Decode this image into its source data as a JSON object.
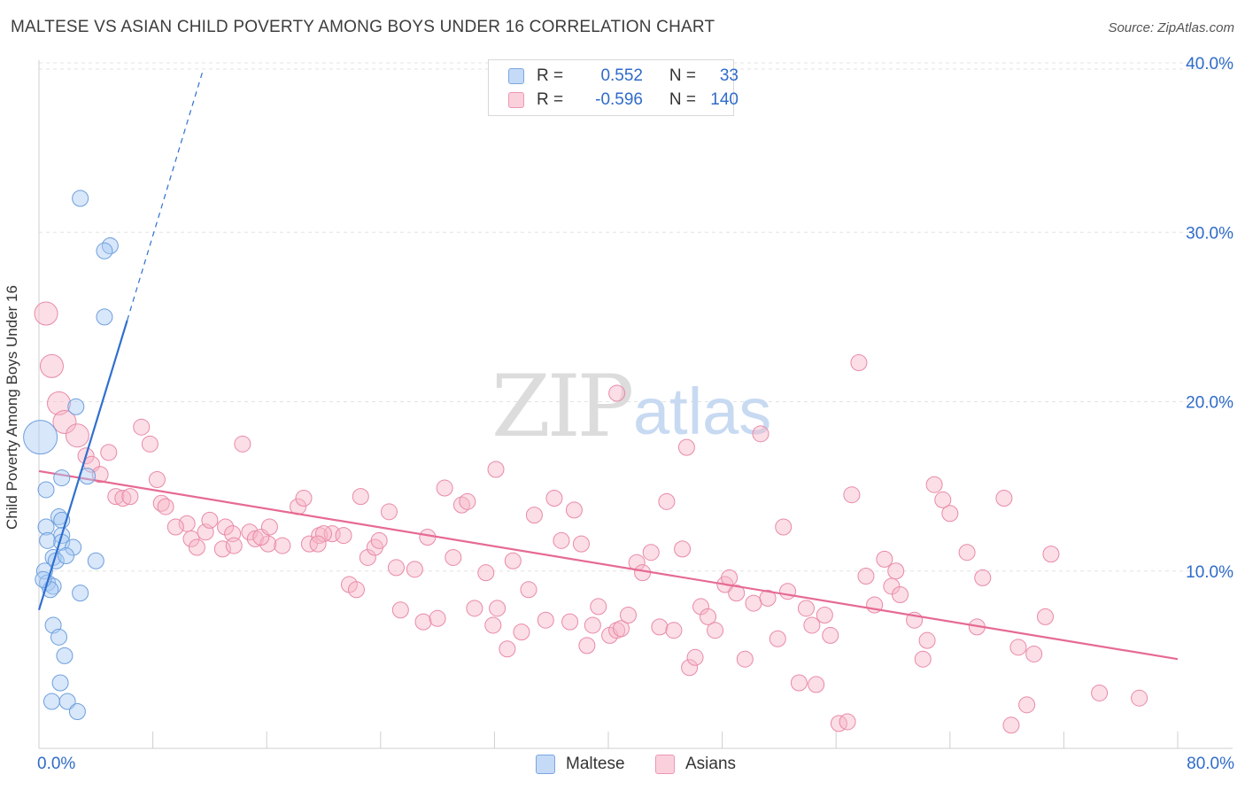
{
  "header": {
    "title": "MALTESE VS ASIAN CHILD POVERTY AMONG BOYS UNDER 16 CORRELATION CHART",
    "source": "Source: ZipAtlas.com"
  },
  "watermark": {
    "zip": "ZIP",
    "atlas": "atlas"
  },
  "legend": {
    "rows": [
      {
        "r_label": "R =",
        "r_value": "0.552",
        "n_label": "N =",
        "n_value": "33",
        "color": "#a9c9f5"
      },
      {
        "r_label": "R =",
        "r_value": "-0.596",
        "n_label": "N =",
        "n_value": "140",
        "color": "#f7b5c8"
      }
    ]
  },
  "bottom_legend": [
    {
      "label": "Maltese",
      "color": "#a9c9f5"
    },
    {
      "label": "Asians",
      "color": "#f7b5c8"
    }
  ],
  "colors": {
    "maltese_fill": "#a9c9f5",
    "maltese_stroke": "#6e9fdc",
    "maltese_line": "#2f6fcf",
    "asian_fill": "#f7b5c8",
    "asian_stroke": "#e98aa7",
    "asian_line": "#e66a92",
    "tick_label": "#2f6bc9",
    "grid": "#e3e3e3"
  },
  "chart_data": {
    "type": "scatter",
    "title": "MALTESE VS ASIAN CHILD POVERTY AMONG BOYS UNDER 16 CORRELATION CHART",
    "xlabel": "",
    "ylabel": "Child Poverty Among Boys Under 16",
    "xlim": [
      0,
      80
    ],
    "ylim": [
      0,
      40
    ],
    "x_tick_labels": [
      "0.0%",
      "80.0%"
    ],
    "y_tick_labels": [
      "10.0%",
      "20.0%",
      "30.0%",
      "40.0%"
    ],
    "y_ticks": [
      10,
      20,
      30,
      40
    ],
    "grid": true,
    "series": [
      {
        "name": "Maltese",
        "r": 0.552,
        "n": 33,
        "trend": {
          "x": [
            0,
            6.2
          ],
          "y": [
            7.7,
            24.8
          ],
          "dashed_to": [
            11.5,
            39.5
          ]
        },
        "points": [
          [
            0.1,
            17.9,
            4
          ],
          [
            2.9,
            32.0,
            1
          ],
          [
            5.0,
            29.2,
            1
          ],
          [
            4.6,
            28.9,
            1
          ],
          [
            4.6,
            25.0,
            1
          ],
          [
            2.6,
            19.7,
            1
          ],
          [
            3.4,
            15.6,
            1
          ],
          [
            1.6,
            15.5,
            1
          ],
          [
            0.5,
            14.8,
            1
          ],
          [
            0.5,
            12.6,
            1
          ],
          [
            1.4,
            13.2,
            1
          ],
          [
            1.6,
            13.0,
            1
          ],
          [
            1.6,
            12.1,
            1
          ],
          [
            0.6,
            11.8,
            1
          ],
          [
            1.6,
            11.7,
            1
          ],
          [
            2.4,
            11.4,
            1
          ],
          [
            1.0,
            10.8,
            1
          ],
          [
            1.2,
            10.6,
            1
          ],
          [
            4.0,
            10.6,
            1
          ],
          [
            0.4,
            10.0,
            1
          ],
          [
            0.6,
            9.3,
            1
          ],
          [
            1.0,
            9.1,
            1
          ],
          [
            0.8,
            8.9,
            1
          ],
          [
            2.9,
            8.7,
            1
          ],
          [
            1.0,
            6.8,
            1
          ],
          [
            1.4,
            6.1,
            1
          ],
          [
            1.8,
            5.0,
            1
          ],
          [
            1.5,
            3.4,
            1
          ],
          [
            0.9,
            2.3,
            1
          ],
          [
            2.0,
            2.3,
            1
          ],
          [
            2.7,
            1.7,
            1
          ],
          [
            0.3,
            9.5,
            1
          ],
          [
            1.9,
            10.9,
            1
          ]
        ]
      },
      {
        "name": "Asians",
        "r": -0.596,
        "n": 140,
        "trend": {
          "x": [
            0,
            80
          ],
          "y": [
            15.9,
            4.8
          ]
        },
        "points": [
          [
            0.5,
            25.2,
            2
          ],
          [
            0.9,
            22.1,
            2
          ],
          [
            1.4,
            19.9,
            2
          ],
          [
            1.8,
            18.8,
            2
          ],
          [
            2.7,
            18.0,
            2
          ],
          [
            3.3,
            16.8,
            1
          ],
          [
            3.7,
            16.3,
            1
          ],
          [
            4.3,
            15.7,
            1
          ],
          [
            4.9,
            17.0,
            1
          ],
          [
            7.8,
            17.5,
            1
          ],
          [
            7.2,
            18.5,
            1
          ],
          [
            14.3,
            17.5,
            1
          ],
          [
            8.3,
            15.4,
            1
          ],
          [
            5.4,
            14.4,
            1
          ],
          [
            5.9,
            14.3,
            1
          ],
          [
            6.4,
            14.4,
            1
          ],
          [
            8.6,
            14.0,
            1
          ],
          [
            8.9,
            13.8,
            1
          ],
          [
            10.4,
            12.8,
            1
          ],
          [
            9.6,
            12.6,
            1
          ],
          [
            10.7,
            11.9,
            1
          ],
          [
            11.7,
            12.3,
            1
          ],
          [
            11.1,
            11.4,
            1
          ],
          [
            12.0,
            13.0,
            1
          ],
          [
            12.9,
            11.3,
            1
          ],
          [
            13.1,
            12.6,
            1
          ],
          [
            13.6,
            12.2,
            1
          ],
          [
            14.8,
            12.3,
            1
          ],
          [
            15.2,
            11.9,
            1
          ],
          [
            16.1,
            11.6,
            1
          ],
          [
            15.6,
            12.0,
            1
          ],
          [
            16.2,
            12.6,
            1
          ],
          [
            17.1,
            11.5,
            1
          ],
          [
            18.2,
            13.8,
            1
          ],
          [
            18.6,
            14.3,
            1
          ],
          [
            19.0,
            11.6,
            1
          ],
          [
            19.7,
            12.1,
            1
          ],
          [
            20.6,
            12.2,
            1
          ],
          [
            20.0,
            12.2,
            1
          ],
          [
            21.4,
            12.1,
            1
          ],
          [
            21.8,
            9.2,
            1
          ],
          [
            22.3,
            8.9,
            1
          ],
          [
            22.6,
            14.4,
            1
          ],
          [
            23.1,
            10.8,
            1
          ],
          [
            23.6,
            11.4,
            1
          ],
          [
            23.9,
            11.8,
            1
          ],
          [
            24.6,
            13.5,
            1
          ],
          [
            25.1,
            10.2,
            1
          ],
          [
            25.4,
            7.7,
            1
          ],
          [
            26.4,
            10.1,
            1
          ],
          [
            27.0,
            7.0,
            1
          ],
          [
            27.3,
            12.0,
            1
          ],
          [
            28.0,
            7.2,
            1
          ],
          [
            28.5,
            14.9,
            1
          ],
          [
            29.1,
            10.8,
            1
          ],
          [
            29.7,
            13.9,
            1
          ],
          [
            30.1,
            14.1,
            1
          ],
          [
            30.6,
            7.8,
            1
          ],
          [
            31.4,
            9.9,
            1
          ],
          [
            32.1,
            16.0,
            1
          ],
          [
            31.9,
            6.8,
            1
          ],
          [
            32.2,
            7.8,
            1
          ],
          [
            32.9,
            5.4,
            1
          ],
          [
            33.3,
            10.6,
            1
          ],
          [
            33.9,
            6.4,
            1
          ],
          [
            34.4,
            8.9,
            1
          ],
          [
            34.8,
            13.3,
            1
          ],
          [
            35.6,
            7.1,
            1
          ],
          [
            36.2,
            14.3,
            1
          ],
          [
            36.7,
            11.8,
            1
          ],
          [
            37.3,
            7.0,
            1
          ],
          [
            37.6,
            13.6,
            1
          ],
          [
            38.1,
            11.6,
            1
          ],
          [
            38.5,
            5.6,
            1
          ],
          [
            38.9,
            6.8,
            1
          ],
          [
            39.3,
            7.9,
            1
          ],
          [
            40.1,
            6.2,
            1
          ],
          [
            40.6,
            6.5,
            1
          ],
          [
            40.9,
            6.6,
            1
          ],
          [
            41.4,
            7.4,
            1
          ],
          [
            42.0,
            10.5,
            1
          ],
          [
            42.4,
            9.9,
            1
          ],
          [
            40.6,
            20.5,
            1
          ],
          [
            43.0,
            11.1,
            1
          ],
          [
            43.6,
            6.7,
            1
          ],
          [
            44.1,
            14.1,
            1
          ],
          [
            44.6,
            6.5,
            1
          ],
          [
            45.2,
            11.3,
            1
          ],
          [
            45.5,
            17.3,
            1
          ],
          [
            45.7,
            4.3,
            1
          ],
          [
            46.1,
            4.9,
            1
          ],
          [
            46.5,
            7.9,
            1
          ],
          [
            47.0,
            7.3,
            1
          ],
          [
            47.5,
            6.5,
            1
          ],
          [
            48.2,
            9.2,
            1
          ],
          [
            48.5,
            9.6,
            1
          ],
          [
            49.0,
            8.7,
            1
          ],
          [
            49.6,
            4.8,
            1
          ],
          [
            50.2,
            8.1,
            1
          ],
          [
            50.7,
            18.1,
            1
          ],
          [
            51.2,
            8.4,
            1
          ],
          [
            51.9,
            6.0,
            1
          ],
          [
            52.3,
            12.6,
            1
          ],
          [
            52.6,
            8.8,
            1
          ],
          [
            53.4,
            3.4,
            1
          ],
          [
            53.9,
            7.8,
            1
          ],
          [
            54.3,
            6.8,
            1
          ],
          [
            54.6,
            3.3,
            1
          ],
          [
            55.2,
            7.4,
            1
          ],
          [
            55.6,
            6.2,
            1
          ],
          [
            56.2,
            1.0,
            1
          ],
          [
            56.8,
            1.1,
            1
          ],
          [
            57.1,
            14.5,
            1
          ],
          [
            57.6,
            22.3,
            1
          ],
          [
            58.1,
            9.7,
            1
          ],
          [
            58.7,
            8.0,
            1
          ],
          [
            59.4,
            10.7,
            1
          ],
          [
            59.9,
            9.1,
            1
          ],
          [
            60.2,
            10.0,
            1
          ],
          [
            60.5,
            8.6,
            1
          ],
          [
            61.5,
            7.1,
            1
          ],
          [
            62.1,
            4.8,
            1
          ],
          [
            62.4,
            5.9,
            1
          ],
          [
            62.9,
            15.1,
            1
          ],
          [
            63.5,
            14.2,
            1
          ],
          [
            64.0,
            13.4,
            1
          ],
          [
            65.2,
            11.1,
            1
          ],
          [
            65.9,
            6.7,
            1
          ],
          [
            66.3,
            9.6,
            1
          ],
          [
            67.8,
            14.3,
            1
          ],
          [
            68.3,
            0.9,
            1
          ],
          [
            68.8,
            5.5,
            1
          ],
          [
            69.4,
            2.1,
            1
          ],
          [
            69.9,
            5.1,
            1
          ],
          [
            70.7,
            7.3,
            1
          ],
          [
            71.1,
            11.0,
            1
          ],
          [
            74.5,
            2.8,
            1
          ],
          [
            77.3,
            2.5,
            1
          ],
          [
            19.6,
            11.6,
            1
          ],
          [
            13.7,
            11.5,
            1
          ]
        ]
      }
    ]
  }
}
